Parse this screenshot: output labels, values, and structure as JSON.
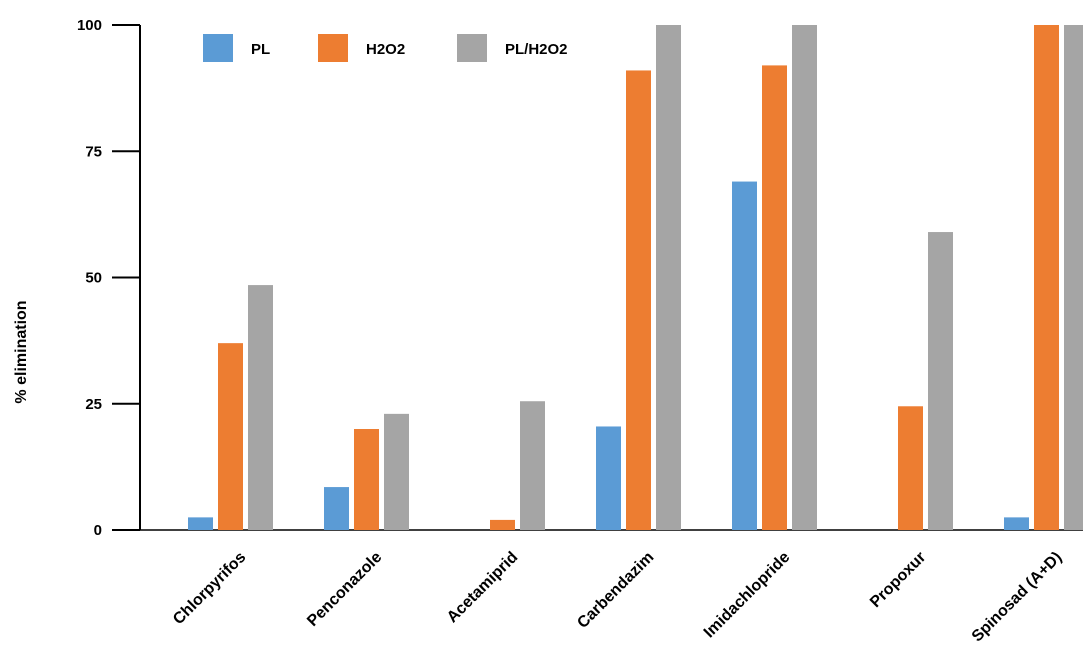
{
  "chart_data": {
    "type": "bar",
    "title": "",
    "xlabel": "",
    "ylabel": "% elimination",
    "ylim": [
      0,
      100
    ],
    "yticks": [
      0,
      25,
      50,
      75,
      100
    ],
    "grid": false,
    "legend_position": "top-left",
    "categories": [
      "Chlorpyrifos",
      "Penconazole",
      "Acetamiprid",
      "Carbendazim",
      "Imidachlopride",
      "Propoxur",
      "Spinosad (A+D)"
    ],
    "series": [
      {
        "name": "PL",
        "color": "#5b9bd5",
        "values": [
          2.5,
          8.5,
          0,
          20.5,
          69,
          0,
          2.5
        ]
      },
      {
        "name": "H2O2",
        "color": "#ed7d31",
        "values": [
          37,
          20,
          2,
          91,
          92,
          24.5,
          100
        ]
      },
      {
        "name": "PL/H2O2",
        "color": "#a5a5a5",
        "values": [
          48.5,
          23,
          25.5,
          100,
          100,
          59,
          100
        ]
      }
    ]
  }
}
